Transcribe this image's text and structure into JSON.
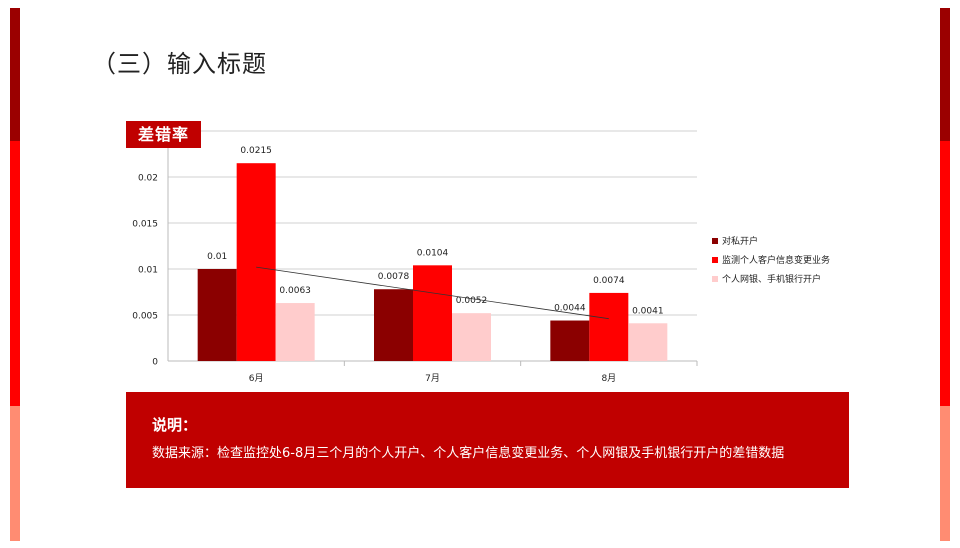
{
  "page": {
    "title": "（三）输入标题"
  },
  "chart_label": "差错率",
  "note": {
    "title": "说明：",
    "text": "数据来源：检查监控处6-8月三个月的个人开户、个人客户信息变更业务、个人网银及手机银行开户的差错数据"
  },
  "colors": {
    "accent": "#c00000",
    "series1": "#8b0000",
    "series2": "#ff0000",
    "series3": "#ffcccc",
    "bar_left_top": "#9b0000",
    "bar_mid": "#ff0000",
    "bar_bottom": "#ff8c72"
  },
  "chart_data": {
    "type": "bar",
    "categories": [
      "6月",
      "7月",
      "8月"
    ],
    "series": [
      {
        "name": "对私开户",
        "values": [
          0.01,
          0.0078,
          0.0044
        ],
        "labels": [
          "0.01",
          "0.0078",
          "0.0044"
        ]
      },
      {
        "name": "监测个人客户信息变更业务",
        "values": [
          0.0215,
          0.0104,
          0.0074
        ],
        "labels": [
          "0.0215",
          "0.0104",
          "0.0074"
        ]
      },
      {
        "name": "个人网银、手机银行开户",
        "values": [
          0.0063,
          0.0052,
          0.0041
        ],
        "labels": [
          "0.0063",
          "0.0052",
          "0.0041"
        ]
      }
    ],
    "ylim": [
      0,
      0.025
    ],
    "yticks": [
      "0",
      "0.005",
      "0.01",
      "0.015",
      "0.02"
    ],
    "ytick_values": [
      0,
      0.005,
      0.01,
      0.015,
      0.02
    ],
    "grid": true,
    "legend_position": "right",
    "trendline": {
      "type": "linear",
      "series": "对私开户"
    }
  }
}
